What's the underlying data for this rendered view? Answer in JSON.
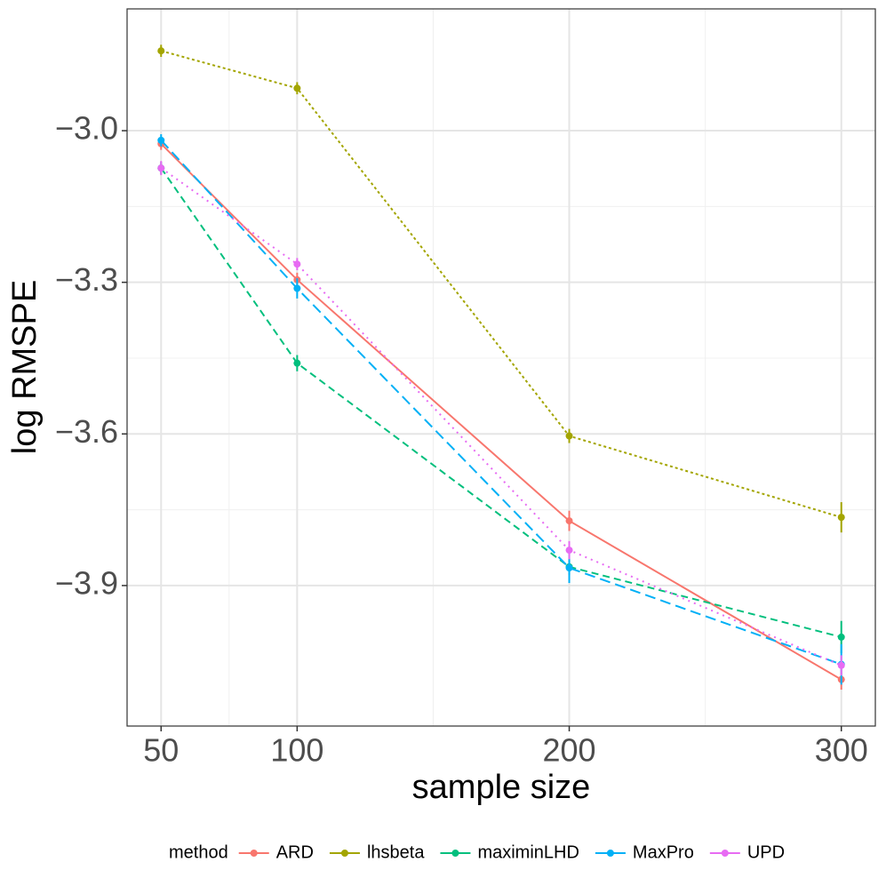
{
  "chart_data": {
    "type": "line",
    "x_label": "sample size",
    "y_label": "log RMSPE",
    "legend_title": "method",
    "legend_position": "bottom",
    "grid": true,
    "x": [
      50,
      100,
      200,
      300
    ],
    "xlim": [
      37.5,
      312.5
    ],
    "xticks": [
      50,
      100,
      200,
      300
    ],
    "ylim": [
      -4.178,
      -2.759
    ],
    "yticks": [
      {
        "value": -3.0,
        "label": "−3.0"
      },
      {
        "value": -3.3,
        "label": "−3.3"
      },
      {
        "value": -3.6,
        "label": "−3.6"
      },
      {
        "value": -3.9,
        "label": "−3.9"
      }
    ],
    "series": [
      {
        "name": "ARD",
        "color": "#F8766D",
        "dash": "solid",
        "values": [
          -3.026,
          -3.295,
          -3.772,
          -4.086
        ],
        "errors": [
          0.012,
          0.014,
          0.02,
          0.02
        ]
      },
      {
        "name": "lhsbeta",
        "color": "#A3A500",
        "dash": "dotted",
        "values": [
          -2.842,
          -2.916,
          -3.604,
          -3.765
        ],
        "errors": [
          0.012,
          0.012,
          0.014,
          0.03
        ]
      },
      {
        "name": "maximinLHD",
        "color": "#00BF7D",
        "dash": "dashed",
        "values": [
          -3.074,
          -3.46,
          -3.863,
          -4.002
        ],
        "errors": [
          0.012,
          0.016,
          0.016,
          0.032
        ]
      },
      {
        "name": "MaxPro",
        "color": "#00B0F6",
        "dash": "longdash",
        "values": [
          -3.019,
          -3.312,
          -3.865,
          -4.056
        ],
        "errors": [
          0.012,
          0.02,
          0.03,
          0.04
        ]
      },
      {
        "name": "UPD",
        "color": "#E76BF3",
        "dash": "dot",
        "values": [
          -3.074,
          -3.264,
          -3.83,
          -4.058
        ],
        "errors": [
          0.014,
          0.012,
          0.018,
          0.02
        ]
      }
    ]
  }
}
